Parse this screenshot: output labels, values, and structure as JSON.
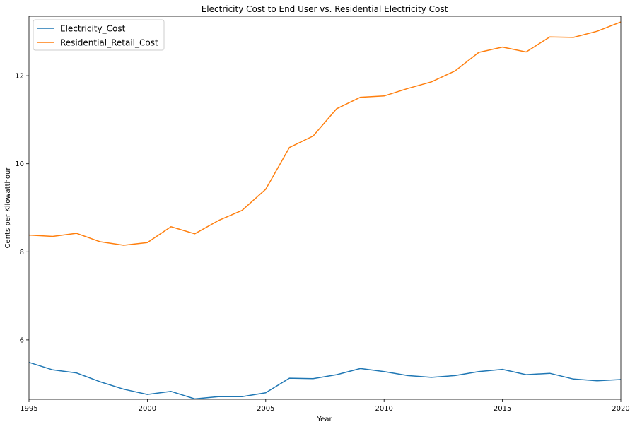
{
  "chart_data": {
    "type": "line",
    "title": "Electricity Cost to End User vs. Residential Electricity Cost",
    "xlabel": "Year",
    "ylabel": "Cents per Kilowatthour",
    "xlim": [
      1995,
      2020
    ],
    "ylim": [
      4.65,
      13.35
    ],
    "x_ticks": [
      1995,
      2000,
      2005,
      2010,
      2015,
      2020
    ],
    "y_ticks": [
      6,
      8,
      10,
      12
    ],
    "grid": false,
    "legend_position": "top-left",
    "x": [
      1995,
      1996,
      1997,
      1998,
      1999,
      2000,
      2001,
      2002,
      2003,
      2004,
      2005,
      2006,
      2007,
      2008,
      2009,
      2010,
      2011,
      2012,
      2013,
      2014,
      2015,
      2016,
      2017,
      2018,
      2019,
      2020
    ],
    "series": [
      {
        "name": "Electricity_Cost",
        "color": "#1f77b4",
        "values": [
          5.49,
          5.32,
          5.25,
          5.05,
          4.88,
          4.76,
          4.83,
          4.66,
          4.71,
          4.71,
          4.8,
          5.13,
          5.12,
          5.21,
          5.35,
          5.28,
          5.19,
          5.15,
          5.19,
          5.28,
          5.33,
          5.21,
          5.24,
          5.11,
          5.07,
          5.1
        ]
      },
      {
        "name": "Residential_Retail_Cost",
        "color": "#ff7f0e",
        "values": [
          8.38,
          8.35,
          8.42,
          8.23,
          8.15,
          8.21,
          8.57,
          8.41,
          8.71,
          8.94,
          9.42,
          10.37,
          10.63,
          11.25,
          11.51,
          11.54,
          11.71,
          11.86,
          12.11,
          12.53,
          12.65,
          12.54,
          12.88,
          12.87,
          13.01,
          13.22
        ]
      }
    ]
  }
}
